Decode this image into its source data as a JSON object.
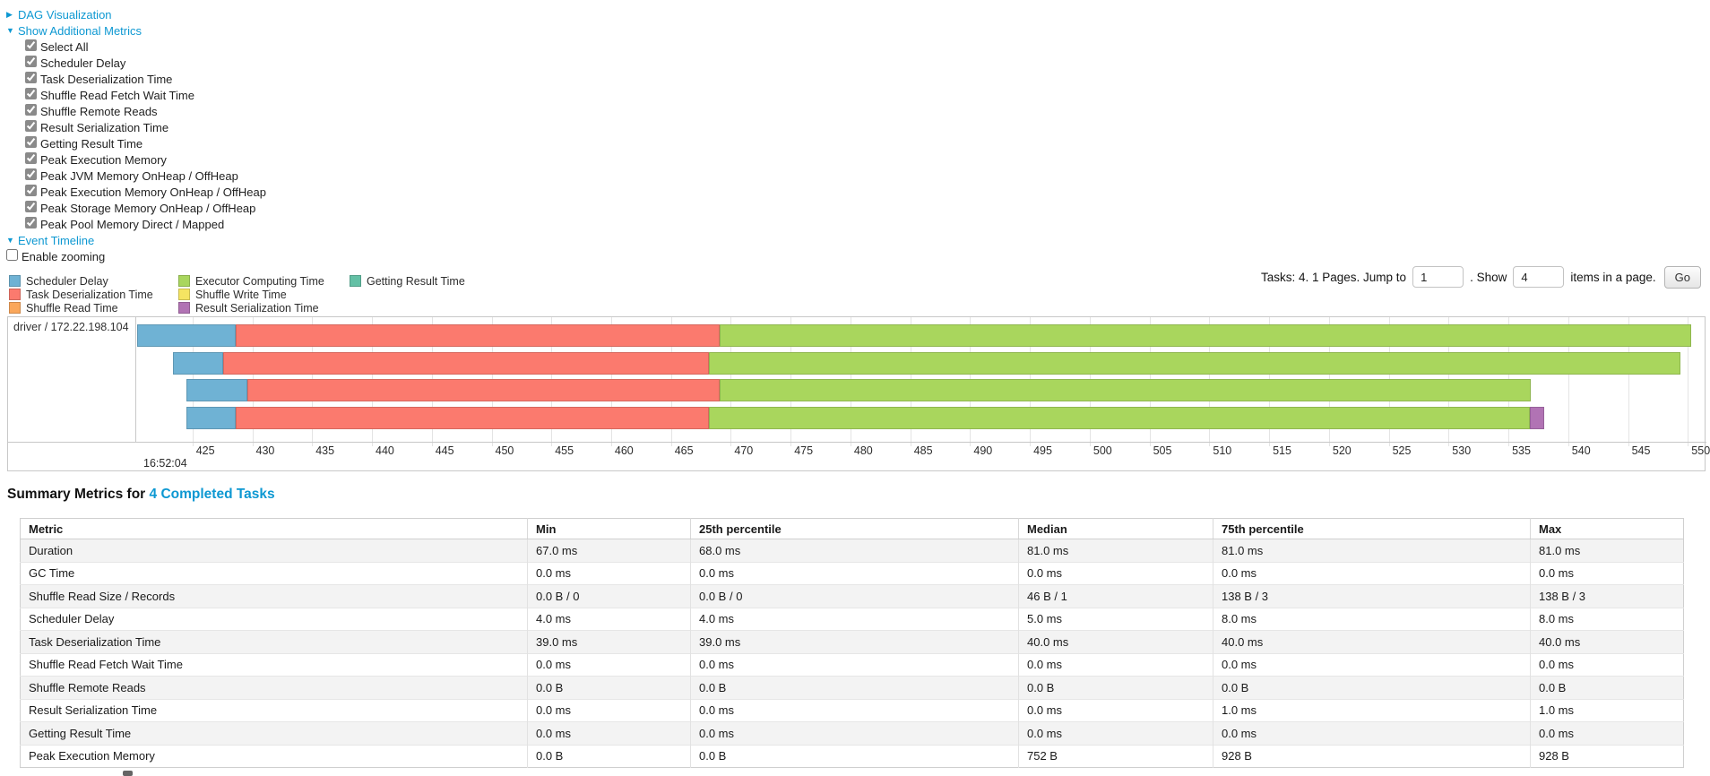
{
  "controls": {
    "dag": {
      "label": "DAG Visualization",
      "expanded": false
    },
    "metrics_toggle": {
      "label": "Show Additional Metrics",
      "expanded": true
    },
    "metric_items": [
      "Select All",
      "Scheduler Delay",
      "Task Deserialization Time",
      "Shuffle Read Fetch Wait Time",
      "Shuffle Remote Reads",
      "Result Serialization Time",
      "Getting Result Time",
      "Peak Execution Memory",
      "Peak JVM Memory OnHeap / OffHeap",
      "Peak Execution Memory OnHeap / OffHeap",
      "Peak Storage Memory OnHeap / OffHeap",
      "Peak Pool Memory Direct / Mapped"
    ],
    "event_timeline_toggle": {
      "label": "Event Timeline",
      "expanded": true
    },
    "enable_zooming": {
      "label": "Enable zooming",
      "checked": false
    }
  },
  "pagination": {
    "prefix": "Tasks: 4. 1 Pages. Jump to",
    "jump_value": "1",
    "mid": ". Show",
    "show_value": "4",
    "suffix": "items in a page.",
    "go_label": "Go"
  },
  "legend": {
    "columns": [
      [
        {
          "key": "scheduler_delay",
          "label": "Scheduler Delay"
        },
        {
          "key": "task_deserialization",
          "label": "Task Deserialization Time"
        },
        {
          "key": "shuffle_read",
          "label": "Shuffle Read Time"
        }
      ],
      [
        {
          "key": "executor_computing",
          "label": "Executor Computing Time"
        },
        {
          "key": "shuffle_write",
          "label": "Shuffle Write Time"
        },
        {
          "key": "result_serialization",
          "label": "Result Serialization Time"
        }
      ],
      [
        {
          "key": "getting_result",
          "label": "Getting Result Time"
        }
      ]
    ]
  },
  "chart_data": {
    "type": "timeline",
    "group_label": "driver / 172.22.198.104",
    "series_colors": {
      "scheduler_delay": "#6FB2D4",
      "task_deserialization": "#FB7A6E",
      "shuffle_read": "#FAA75B",
      "executor_computing": "#A9D65D",
      "shuffle_write": "#F5E462",
      "result_serialization": "#B173B4",
      "getting_result": "#63C0A5"
    },
    "axis": {
      "value_min": 420.3,
      "value_max": 551.55,
      "tick_start": 425,
      "tick_end": 550,
      "tick_step": 5,
      "major_label": "16:52:04"
    },
    "tasks": [
      {
        "segments": [
          {
            "type": "scheduler_delay",
            "start": 420.4,
            "end": 428.6
          },
          {
            "type": "task_deserialization",
            "start": 428.6,
            "end": 469.1
          },
          {
            "type": "executor_computing",
            "start": 469.1,
            "end": 550.3
          }
        ]
      },
      {
        "segments": [
          {
            "type": "scheduler_delay",
            "start": 423.4,
            "end": 427.6
          },
          {
            "type": "task_deserialization",
            "start": 427.6,
            "end": 468.2
          },
          {
            "type": "executor_computing",
            "start": 468.2,
            "end": 549.4
          }
        ]
      },
      {
        "segments": [
          {
            "type": "scheduler_delay",
            "start": 424.5,
            "end": 429.6
          },
          {
            "type": "task_deserialization",
            "start": 429.6,
            "end": 469.1
          },
          {
            "type": "executor_computing",
            "start": 469.1,
            "end": 536.9
          }
        ]
      },
      {
        "segments": [
          {
            "type": "scheduler_delay",
            "start": 424.5,
            "end": 428.6
          },
          {
            "type": "task_deserialization",
            "start": 428.6,
            "end": 468.2
          },
          {
            "type": "executor_computing",
            "start": 468.2,
            "end": 536.8
          },
          {
            "type": "result_serialization",
            "start": 536.8,
            "end": 538.0
          }
        ]
      }
    ]
  },
  "summary": {
    "title_prefix": "Summary Metrics for",
    "title_link": "4 Completed Tasks",
    "table": {
      "headers": [
        "Metric",
        "Min",
        "25th percentile",
        "Median",
        "75th percentile",
        "Max"
      ],
      "rows": [
        [
          "Duration",
          "67.0 ms",
          "68.0 ms",
          "81.0 ms",
          "81.0 ms",
          "81.0 ms"
        ],
        [
          "GC Time",
          "0.0 ms",
          "0.0 ms",
          "0.0 ms",
          "0.0 ms",
          "0.0 ms"
        ],
        [
          "Shuffle Read Size / Records",
          "0.0 B / 0",
          "0.0 B / 0",
          "46 B / 1",
          "138 B / 3",
          "138 B / 3"
        ],
        [
          "Scheduler Delay",
          "4.0 ms",
          "4.0 ms",
          "5.0 ms",
          "8.0 ms",
          "8.0 ms"
        ],
        [
          "Task Deserialization Time",
          "39.0 ms",
          "39.0 ms",
          "40.0 ms",
          "40.0 ms",
          "40.0 ms"
        ],
        [
          "Shuffle Read Fetch Wait Time",
          "0.0 ms",
          "0.0 ms",
          "0.0 ms",
          "0.0 ms",
          "0.0 ms"
        ],
        [
          "Shuffle Remote Reads",
          "0.0 B",
          "0.0 B",
          "0.0 B",
          "0.0 B",
          "0.0 B"
        ],
        [
          "Result Serialization Time",
          "0.0 ms",
          "0.0 ms",
          "0.0 ms",
          "1.0 ms",
          "1.0 ms"
        ],
        [
          "Getting Result Time",
          "0.0 ms",
          "0.0 ms",
          "0.0 ms",
          "0.0 ms",
          "0.0 ms"
        ],
        [
          "Peak Execution Memory",
          "0.0 B",
          "0.0 B",
          "752 B",
          "928 B",
          "928 B"
        ]
      ]
    }
  }
}
